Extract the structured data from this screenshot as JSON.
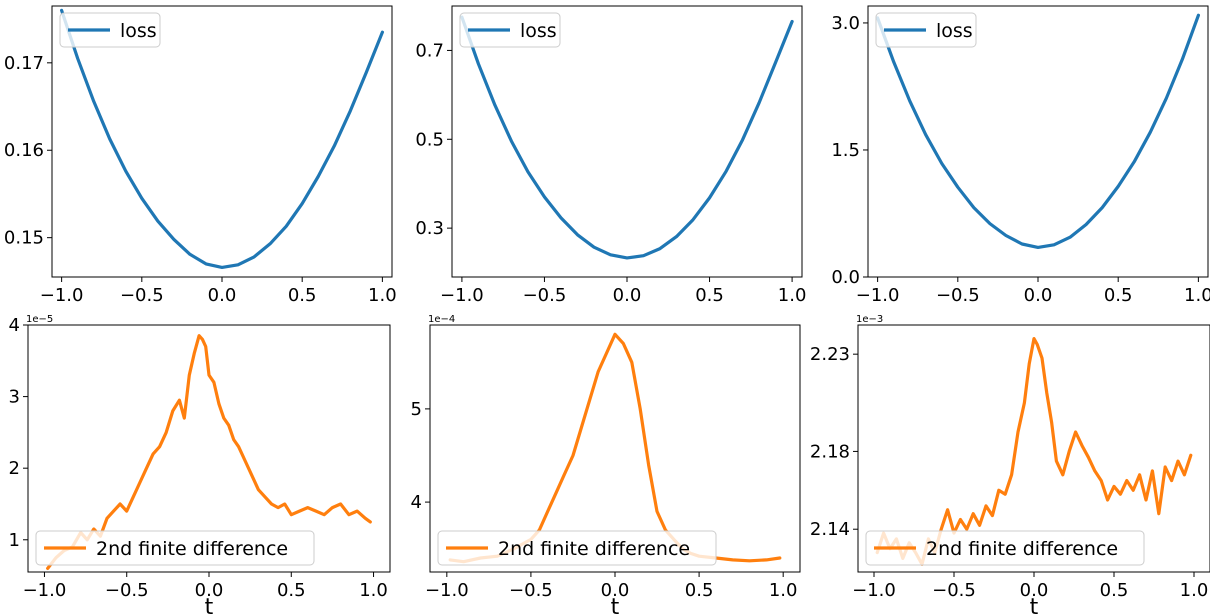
{
  "chart_data": [
    {
      "type": "line",
      "xlim": [
        -1.06,
        1.06
      ],
      "ylim": [
        0.1455,
        0.1765
      ],
      "xticks": [
        -1.0,
        -0.5,
        0.0,
        0.5,
        1.0
      ],
      "xtick_labels": [
        "−1.0",
        "−0.5",
        "0.0",
        "0.5",
        "1.0"
      ],
      "yticks": [
        0.15,
        0.16,
        0.17
      ],
      "ytick_labels": [
        "0.15",
        "0.16",
        "0.17"
      ],
      "offset_label": "",
      "xlabel": "",
      "legend_loc": "upper left",
      "legend_label": "loss",
      "color": "#1f77b4",
      "series": [
        {
          "name": "loss",
          "x": [
            -1.0,
            -0.9,
            -0.8,
            -0.7,
            -0.6,
            -0.5,
            -0.4,
            -0.3,
            -0.2,
            -0.1,
            0.0,
            0.1,
            0.2,
            0.3,
            0.4,
            0.5,
            0.6,
            0.7,
            0.8,
            0.9,
            1.0
          ],
          "y": [
            0.176,
            0.1705,
            0.1656,
            0.1613,
            0.1576,
            0.1545,
            0.1519,
            0.1498,
            0.1481,
            0.147,
            0.1466,
            0.1469,
            0.1478,
            0.1493,
            0.1513,
            0.1539,
            0.157,
            0.1605,
            0.1645,
            0.1689,
            0.1735
          ]
        }
      ]
    },
    {
      "type": "line",
      "xlim": [
        -1.06,
        1.06
      ],
      "ylim": [
        0.19,
        0.8
      ],
      "xticks": [
        -1.0,
        -0.5,
        0.0,
        0.5,
        1.0
      ],
      "xtick_labels": [
        "−1.0",
        "−0.5",
        "0.0",
        "0.5",
        "1.0"
      ],
      "yticks": [
        0.3,
        0.5,
        0.7
      ],
      "ytick_labels": [
        "0.3",
        "0.5",
        "0.7"
      ],
      "offset_label": "",
      "xlabel": "",
      "legend_loc": "upper left",
      "legend_label": "loss",
      "color": "#1f77b4",
      "series": [
        {
          "name": "loss",
          "x": [
            -1.0,
            -0.9,
            -0.8,
            -0.7,
            -0.6,
            -0.5,
            -0.4,
            -0.3,
            -0.2,
            -0.1,
            0.0,
            0.1,
            0.2,
            0.3,
            0.4,
            0.5,
            0.6,
            0.7,
            0.8,
            0.9,
            1.0
          ],
          "y": [
            0.775,
            0.67,
            0.577,
            0.496,
            0.427,
            0.37,
            0.323,
            0.285,
            0.257,
            0.24,
            0.233,
            0.238,
            0.254,
            0.281,
            0.319,
            0.368,
            0.428,
            0.499,
            0.582,
            0.673,
            0.765
          ]
        }
      ]
    },
    {
      "type": "line",
      "xlim": [
        -1.06,
        1.06
      ],
      "ylim": [
        0.0,
        3.2
      ],
      "xticks": [
        -1.0,
        -0.5,
        0.0,
        0.5,
        1.0
      ],
      "xtick_labels": [
        "−1.0",
        "−0.5",
        "0.0",
        "0.5",
        "1.0"
      ],
      "yticks": [
        0.0,
        1.5,
        3.0
      ],
      "ytick_labels": [
        "0.0",
        "1.5",
        "3.0"
      ],
      "offset_label": "",
      "xlabel": "",
      "legend_loc": "upper left",
      "legend_label": "loss",
      "color": "#1f77b4",
      "series": [
        {
          "name": "loss",
          "x": [
            -1.0,
            -0.9,
            -0.8,
            -0.7,
            -0.6,
            -0.5,
            -0.4,
            -0.3,
            -0.2,
            -0.1,
            0.0,
            0.1,
            0.2,
            0.3,
            0.4,
            0.5,
            0.6,
            0.7,
            0.8,
            0.9,
            1.0
          ],
          "y": [
            3.06,
            2.54,
            2.08,
            1.68,
            1.34,
            1.06,
            0.82,
            0.63,
            0.49,
            0.39,
            0.35,
            0.38,
            0.47,
            0.62,
            0.82,
            1.07,
            1.36,
            1.71,
            2.11,
            2.57,
            3.09
          ]
        }
      ]
    },
    {
      "type": "line",
      "xlim": [
        -1.1,
        1.1
      ],
      "ylim": [
        0.55,
        4.0
      ],
      "xticks": [
        -1.0,
        -0.5,
        0.0,
        0.5,
        1.0
      ],
      "xtick_labels": [
        "−1.0",
        "−0.5",
        "0.0",
        "0.5",
        "1.0"
      ],
      "yticks": [
        1,
        2,
        3,
        4
      ],
      "ytick_labels": [
        "1",
        "2",
        "3",
        "4"
      ],
      "offset_label": "1e−5",
      "xlabel": "t",
      "legend_loc": "lower left",
      "legend_label": "2nd finite difference",
      "color": "#ff7f0e",
      "series": [
        {
          "name": "2nd finite difference",
          "x": [
            -0.98,
            -0.93,
            -0.88,
            -0.83,
            -0.78,
            -0.74,
            -0.7,
            -0.66,
            -0.62,
            -0.58,
            -0.54,
            -0.5,
            -0.46,
            -0.42,
            -0.38,
            -0.34,
            -0.3,
            -0.26,
            -0.22,
            -0.18,
            -0.15,
            -0.12,
            -0.09,
            -0.06,
            -0.04,
            -0.02,
            0.0,
            0.03,
            0.06,
            0.09,
            0.12,
            0.15,
            0.18,
            0.22,
            0.26,
            0.3,
            0.34,
            0.38,
            0.42,
            0.46,
            0.5,
            0.55,
            0.6,
            0.65,
            0.7,
            0.75,
            0.8,
            0.85,
            0.9,
            0.95,
            0.98
          ],
          "y": [
            0.6,
            0.75,
            0.85,
            0.9,
            1.1,
            1.0,
            1.15,
            1.05,
            1.3,
            1.4,
            1.5,
            1.4,
            1.6,
            1.8,
            2.0,
            2.2,
            2.3,
            2.5,
            2.8,
            2.95,
            2.7,
            3.3,
            3.6,
            3.85,
            3.8,
            3.7,
            3.3,
            3.2,
            2.9,
            2.7,
            2.6,
            2.4,
            2.3,
            2.1,
            1.9,
            1.7,
            1.6,
            1.5,
            1.45,
            1.5,
            1.35,
            1.4,
            1.45,
            1.4,
            1.35,
            1.45,
            1.5,
            1.35,
            1.4,
            1.3,
            1.25
          ]
        }
      ]
    },
    {
      "type": "line",
      "xlim": [
        -1.1,
        1.1
      ],
      "ylim": [
        3.25,
        5.9
      ],
      "xticks": [
        -1.0,
        -0.5,
        0.0,
        0.5,
        1.0
      ],
      "xtick_labels": [
        "−1.0",
        "−0.5",
        "0.0",
        "0.5",
        "1.0"
      ],
      "yticks": [
        4,
        5
      ],
      "ytick_labels": [
        "4",
        "5"
      ],
      "offset_label": "1e−4",
      "xlabel": "t",
      "legend_loc": "lower left",
      "legend_label": "2nd finite difference",
      "color": "#ff7f0e",
      "series": [
        {
          "name": "2nd finite difference",
          "x": [
            -0.98,
            -0.9,
            -0.8,
            -0.7,
            -0.6,
            -0.5,
            -0.45,
            -0.4,
            -0.35,
            -0.3,
            -0.25,
            -0.2,
            -0.15,
            -0.1,
            -0.05,
            0.0,
            0.05,
            0.1,
            0.15,
            0.2,
            0.25,
            0.3,
            0.35,
            0.4,
            0.45,
            0.5,
            0.6,
            0.7,
            0.8,
            0.9,
            0.98
          ],
          "y": [
            3.38,
            3.36,
            3.4,
            3.42,
            3.5,
            3.6,
            3.7,
            3.9,
            4.1,
            4.3,
            4.5,
            4.8,
            5.1,
            5.4,
            5.6,
            5.8,
            5.7,
            5.5,
            5.0,
            4.4,
            3.9,
            3.7,
            3.6,
            3.5,
            3.45,
            3.42,
            3.4,
            3.38,
            3.37,
            3.38,
            3.4
          ]
        }
      ]
    },
    {
      "type": "line",
      "xlim": [
        -1.1,
        1.1
      ],
      "ylim": [
        2.118,
        2.245
      ],
      "xticks": [
        -1.0,
        -0.5,
        0.0,
        0.5,
        1.0
      ],
      "xtick_labels": [
        "−1.0",
        "−0.5",
        "0.0",
        "0.5",
        "1.0"
      ],
      "yticks": [
        2.14,
        2.18,
        2.23
      ],
      "ytick_labels": [
        "2.14",
        "2.18",
        "2.23"
      ],
      "offset_label": "1e−3",
      "xlabel": "t",
      "legend_loc": "lower left",
      "legend_label": "2nd finite difference",
      "color": "#ff7f0e",
      "series": [
        {
          "name": "2nd finite difference",
          "x": [
            -0.98,
            -0.94,
            -0.9,
            -0.86,
            -0.82,
            -0.78,
            -0.74,
            -0.7,
            -0.66,
            -0.62,
            -0.58,
            -0.54,
            -0.5,
            -0.46,
            -0.42,
            -0.38,
            -0.34,
            -0.3,
            -0.26,
            -0.22,
            -0.18,
            -0.14,
            -0.1,
            -0.06,
            -0.03,
            0.0,
            0.02,
            0.05,
            0.08,
            0.11,
            0.14,
            0.18,
            0.22,
            0.26,
            0.3,
            0.34,
            0.38,
            0.42,
            0.46,
            0.5,
            0.54,
            0.58,
            0.62,
            0.66,
            0.7,
            0.74,
            0.78,
            0.82,
            0.86,
            0.9,
            0.94,
            0.98
          ],
          "y": [
            2.128,
            2.138,
            2.13,
            2.135,
            2.125,
            2.133,
            2.128,
            2.122,
            2.135,
            2.128,
            2.14,
            2.15,
            2.138,
            2.145,
            2.14,
            2.148,
            2.142,
            2.152,
            2.147,
            2.16,
            2.158,
            2.168,
            2.19,
            2.205,
            2.225,
            2.238,
            2.235,
            2.228,
            2.21,
            2.195,
            2.175,
            2.168,
            2.18,
            2.19,
            2.183,
            2.177,
            2.17,
            2.165,
            2.155,
            2.162,
            2.158,
            2.165,
            2.16,
            2.168,
            2.155,
            2.17,
            2.148,
            2.172,
            2.165,
            2.175,
            2.168,
            2.178
          ]
        }
      ]
    }
  ]
}
